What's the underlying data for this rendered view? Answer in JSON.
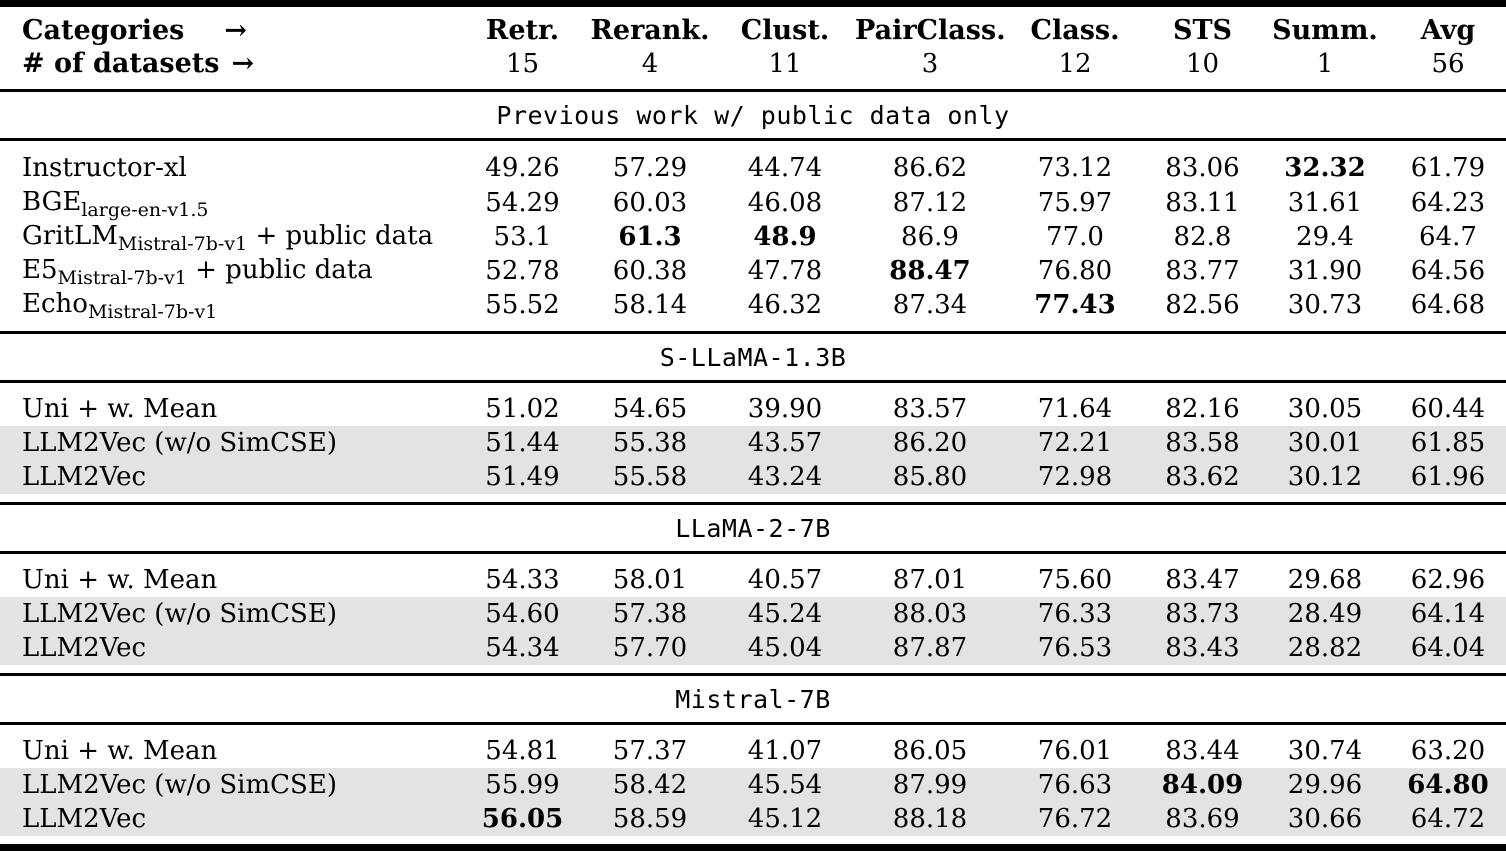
{
  "table": {
    "header": {
      "categories_label": "Categories",
      "datasets_label": "# of datasets",
      "arrow": "→",
      "columns": [
        {
          "label": "Retr.",
          "count": "15"
        },
        {
          "label": "Rerank.",
          "count": "4"
        },
        {
          "label": "Clust.",
          "count": "11"
        },
        {
          "label": "PairClass.",
          "count": "3"
        },
        {
          "label": "Class.",
          "count": "12"
        },
        {
          "label": "STS",
          "count": "10"
        },
        {
          "label": "Summ.",
          "count": "1"
        },
        {
          "label": "Avg",
          "count": "56"
        }
      ]
    },
    "sections": [
      {
        "band": "Previous work w/ public data only",
        "rows": [
          {
            "label": [
              {
                "type": "text",
                "value": "Instructor-xl"
              }
            ],
            "values": [
              "49.26",
              "57.29",
              "44.74",
              "86.62",
              "73.12",
              "83.06",
              "32.32",
              "61.79"
            ],
            "bold": [
              6
            ],
            "highlight": false
          },
          {
            "label": [
              {
                "type": "text",
                "value": "BGE"
              },
              {
                "type": "sub",
                "value": "large-en-v1.5"
              }
            ],
            "values": [
              "54.29",
              "60.03",
              "46.08",
              "87.12",
              "75.97",
              "83.11",
              "31.61",
              "64.23"
            ],
            "bold": [],
            "highlight": false
          },
          {
            "label": [
              {
                "type": "text",
                "value": "GritLM"
              },
              {
                "type": "sub",
                "value": "Mistral-7b-v1"
              },
              {
                "type": "text",
                "value": " + public data"
              }
            ],
            "values": [
              "53.1",
              "61.3",
              "48.9",
              "86.9",
              "77.0",
              "82.8",
              "29.4",
              "64.7"
            ],
            "bold": [
              1,
              2
            ],
            "highlight": false
          },
          {
            "label": [
              {
                "type": "text",
                "value": "E5"
              },
              {
                "type": "sub",
                "value": "Mistral-7b-v1"
              },
              {
                "type": "text",
                "value": " + public data"
              }
            ],
            "values": [
              "52.78",
              "60.38",
              "47.78",
              "88.47",
              "76.80",
              "83.77",
              "31.90",
              "64.56"
            ],
            "bold": [
              3
            ],
            "highlight": false
          },
          {
            "label": [
              {
                "type": "text",
                "value": "Echo"
              },
              {
                "type": "sub",
                "value": "Mistral-7b-v1"
              }
            ],
            "values": [
              "55.52",
              "58.14",
              "46.32",
              "87.34",
              "77.43",
              "82.56",
              "30.73",
              "64.68"
            ],
            "bold": [
              4
            ],
            "highlight": false
          }
        ]
      },
      {
        "band": "S-LLaMA-1.3B",
        "rows": [
          {
            "label": [
              {
                "type": "text",
                "value": "Uni + w. Mean"
              }
            ],
            "values": [
              "51.02",
              "54.65",
              "39.90",
              "83.57",
              "71.64",
              "82.16",
              "30.05",
              "60.44"
            ],
            "bold": [],
            "highlight": false
          },
          {
            "label": [
              {
                "type": "text",
                "value": "LLM2Vec (w/o SimCSE)"
              }
            ],
            "values": [
              "51.44",
              "55.38",
              "43.57",
              "86.20",
              "72.21",
              "83.58",
              "30.01",
              "61.85"
            ],
            "bold": [],
            "highlight": true
          },
          {
            "label": [
              {
                "type": "text",
                "value": "LLM2Vec"
              }
            ],
            "values": [
              "51.49",
              "55.58",
              "43.24",
              "85.80",
              "72.98",
              "83.62",
              "30.12",
              "61.96"
            ],
            "bold": [],
            "highlight": true
          }
        ]
      },
      {
        "band": "LLaMA-2-7B",
        "rows": [
          {
            "label": [
              {
                "type": "text",
                "value": "Uni + w. Mean"
              }
            ],
            "values": [
              "54.33",
              "58.01",
              "40.57",
              "87.01",
              "75.60",
              "83.47",
              "29.68",
              "62.96"
            ],
            "bold": [],
            "highlight": false
          },
          {
            "label": [
              {
                "type": "text",
                "value": "LLM2Vec (w/o SimCSE)"
              }
            ],
            "values": [
              "54.60",
              "57.38",
              "45.24",
              "88.03",
              "76.33",
              "83.73",
              "28.49",
              "64.14"
            ],
            "bold": [],
            "highlight": true
          },
          {
            "label": [
              {
                "type": "text",
                "value": "LLM2Vec"
              }
            ],
            "values": [
              "54.34",
              "57.70",
              "45.04",
              "87.87",
              "76.53",
              "83.43",
              "28.82",
              "64.04"
            ],
            "bold": [],
            "highlight": true
          }
        ]
      },
      {
        "band": "Mistral-7B",
        "rows": [
          {
            "label": [
              {
                "type": "text",
                "value": "Uni + w. Mean"
              }
            ],
            "values": [
              "54.81",
              "57.37",
              "41.07",
              "86.05",
              "76.01",
              "83.44",
              "30.74",
              "63.20"
            ],
            "bold": [],
            "highlight": false
          },
          {
            "label": [
              {
                "type": "text",
                "value": "LLM2Vec (w/o SimCSE)"
              }
            ],
            "values": [
              "55.99",
              "58.42",
              "45.54",
              "87.99",
              "76.63",
              "84.09",
              "29.96",
              "64.80"
            ],
            "bold": [
              5,
              7
            ],
            "highlight": true
          },
          {
            "label": [
              {
                "type": "text",
                "value": "LLM2Vec"
              }
            ],
            "values": [
              "56.05",
              "58.59",
              "45.12",
              "88.18",
              "76.72",
              "83.69",
              "30.66",
              "64.72"
            ],
            "bold": [
              0
            ],
            "highlight": true
          }
        ]
      }
    ]
  },
  "colors": {
    "highlight_row": "#e3e3e1",
    "rule": "#000000",
    "text": "#000000",
    "background": "#ffffff"
  }
}
